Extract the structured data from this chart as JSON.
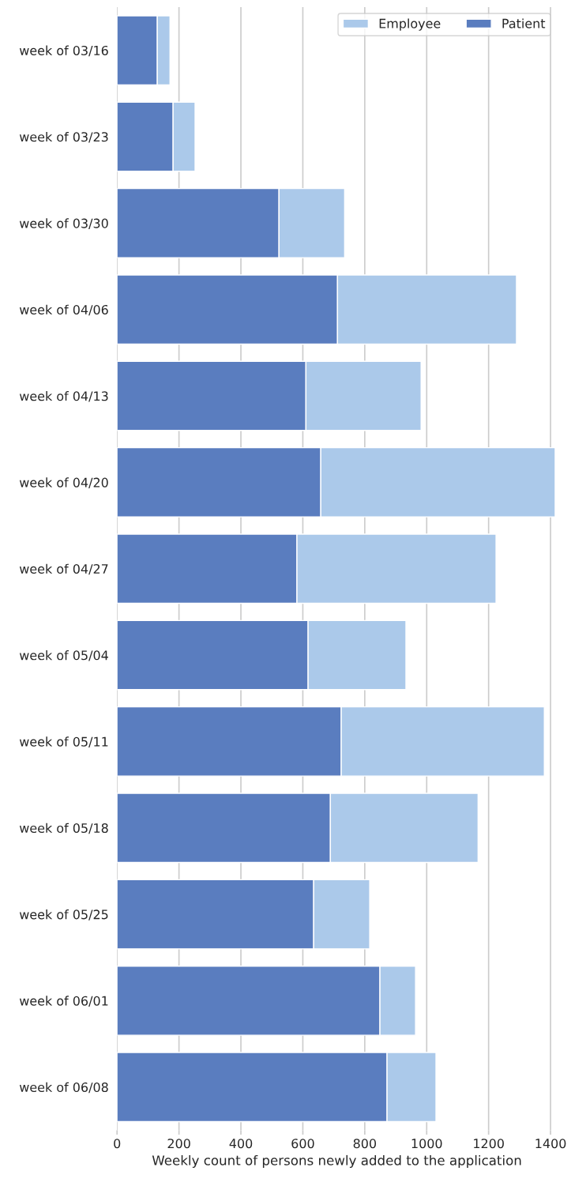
{
  "chart_data": {
    "type": "bar",
    "orientation": "horizontal",
    "stacked": true,
    "categories": [
      "week of 03/16",
      "week of 03/23",
      "week of 03/30",
      "week of 04/06",
      "week of 04/13",
      "week of 04/20",
      "week of 04/27",
      "week of 05/04",
      "week of 05/11",
      "week of 05/18",
      "week of 05/25",
      "week of 06/01",
      "week of 06/08"
    ],
    "series": [
      {
        "name": "Patient",
        "color": "#5a7dbf",
        "values": [
          130,
          181,
          523,
          712,
          610,
          658,
          581,
          617,
          724,
          689,
          635,
          849,
          872
        ]
      },
      {
        "name": "Employee",
        "color": "#abc9ea",
        "values": [
          41,
          71,
          212,
          578,
          372,
          757,
          643,
          316,
          656,
          477,
          181,
          115,
          158
        ]
      }
    ],
    "xlabel": "Weekly count of persons newly added to the application",
    "xlim": [
      0,
      1420
    ],
    "xticks": [
      0,
      200,
      400,
      600,
      800,
      1000,
      1200,
      1400
    ],
    "grid": "x",
    "legend": "top right"
  }
}
